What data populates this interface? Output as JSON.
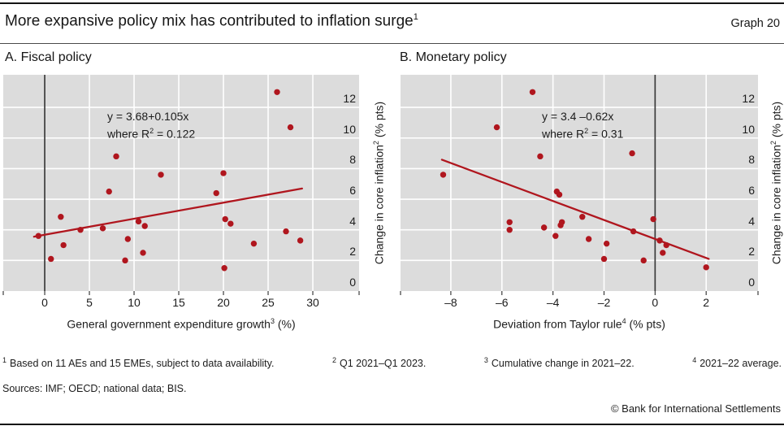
{
  "colors": {
    "red": "#b0161e",
    "plot_bg": "#dcdcdc",
    "text": "#1c1c1c"
  },
  "header": {
    "title": "More expansive policy mix has contributed to inflation surge",
    "title_sup": "1",
    "graph_label": "Graph 20"
  },
  "chart_data": [
    {
      "type": "scatter",
      "title": "A. Fiscal policy",
      "xlabel": "General government expenditure growth",
      "xlabel_sup": "3",
      "xlabel_unit": " (%)",
      "ylabel": "Change in core inflation",
      "ylabel_sup": "2",
      "ylabel_unit": " (% pts)",
      "xlim": [
        -4.64,
        35.18
      ],
      "ylim": [
        0,
        14.13
      ],
      "xticks": [
        0,
        5,
        10,
        15,
        20,
        25,
        30
      ],
      "xtick_labels": [
        "0",
        "5",
        "10",
        "15",
        "20",
        "25",
        "30"
      ],
      "yticks": [
        0,
        2,
        4,
        6,
        8,
        10,
        12
      ],
      "ytick_labels": [
        "0",
        "2",
        "4",
        "6",
        "8",
        "10",
        "12"
      ],
      "grid": true,
      "zero_line_x": 0,
      "annotation": {
        "line1": "y = 3.68+0.105x",
        "line2_pre": "where R",
        "line2_sup": "2",
        "line2_post": " = 0.122"
      },
      "regression": {
        "x1": -1.2,
        "y1": 3.55,
        "x2": 28.8,
        "y2": 6.7
      },
      "points": [
        [
          26,
          13.0
        ],
        [
          27.5,
          10.7
        ],
        [
          8,
          8.8
        ],
        [
          13,
          7.6
        ],
        [
          20,
          7.7
        ],
        [
          7.2,
          6.5
        ],
        [
          19.2,
          6.4
        ],
        [
          1.8,
          4.85
        ],
        [
          4,
          4.0
        ],
        [
          6.5,
          4.1
        ],
        [
          10.5,
          4.55
        ],
        [
          11.2,
          4.25
        ],
        [
          -0.7,
          3.6
        ],
        [
          20.2,
          4.7
        ],
        [
          20.8,
          4.4
        ],
        [
          9.3,
          3.4
        ],
        [
          2.1,
          3.0
        ],
        [
          23.4,
          3.1
        ],
        [
          27,
          3.9
        ],
        [
          28.6,
          3.3
        ],
        [
          11,
          2.5
        ],
        [
          0.7,
          2.1
        ],
        [
          9,
          2.0
        ],
        [
          20.1,
          1.5
        ]
      ]
    },
    {
      "type": "scatter",
      "title": "B. Monetary policy",
      "xlabel": "Deviation from Taylor rule",
      "xlabel_sup": "4",
      "xlabel_unit": " (% pts)",
      "ylabel": "Change in core inflation",
      "ylabel_sup": "2",
      "ylabel_unit": " (% pts)",
      "xlim": [
        -9.97,
        4.03
      ],
      "ylim": [
        0,
        14.13
      ],
      "xticks": [
        -8,
        -6,
        -4,
        -2,
        0,
        2
      ],
      "xtick_labels": [
        "–8",
        "–6",
        "–4",
        "–2",
        "0",
        "2"
      ],
      "yticks": [
        0,
        2,
        4,
        6,
        8,
        10,
        12
      ],
      "ytick_labels": [
        "0",
        "2",
        "4",
        "6",
        "8",
        "10",
        "12"
      ],
      "grid": true,
      "zero_line_x": 0,
      "annotation": {
        "line1": "y = 3.4 –0.62x",
        "line2_pre": "where R",
        "line2_sup": "2",
        "line2_post": " = 0.31"
      },
      "regression": {
        "x1": -8.35,
        "y1": 8.58,
        "x2": 2.1,
        "y2": 2.1
      },
      "points": [
        [
          -4.8,
          13.0
        ],
        [
          -6.2,
          10.7
        ],
        [
          -4.5,
          8.8
        ],
        [
          -0.9,
          9.0
        ],
        [
          -8.3,
          7.6
        ],
        [
          -3.85,
          6.5
        ],
        [
          -3.75,
          6.3
        ],
        [
          -2.85,
          4.85
        ],
        [
          -5.7,
          4.5
        ],
        [
          -5.7,
          4.0
        ],
        [
          -3.65,
          4.5
        ],
        [
          -3.7,
          4.3
        ],
        [
          -4.35,
          4.15
        ],
        [
          -3.9,
          3.6
        ],
        [
          -0.85,
          3.9
        ],
        [
          -0.07,
          4.7
        ],
        [
          -2.6,
          3.4
        ],
        [
          -1.9,
          3.1
        ],
        [
          0.18,
          3.3
        ],
        [
          0.44,
          3.0
        ],
        [
          0.3,
          2.5
        ],
        [
          -2.0,
          2.1
        ],
        [
          -0.45,
          2.0
        ],
        [
          2.0,
          1.55
        ]
      ]
    }
  ],
  "footnotes": {
    "f1": {
      "sup": "1",
      "text": "Based on 11 AEs and 15 EMEs, subject to data availability."
    },
    "f2": {
      "sup": "2",
      "text": "Q1 2021–Q1 2023."
    },
    "f3": {
      "sup": "3",
      "text": "Cumulative change in 2021–22."
    },
    "f4": {
      "sup": "4",
      "text": "2021–22 average."
    },
    "sources": "Sources: IMF; OECD; national data; BIS.",
    "copyright": "© Bank for International Settlements"
  }
}
